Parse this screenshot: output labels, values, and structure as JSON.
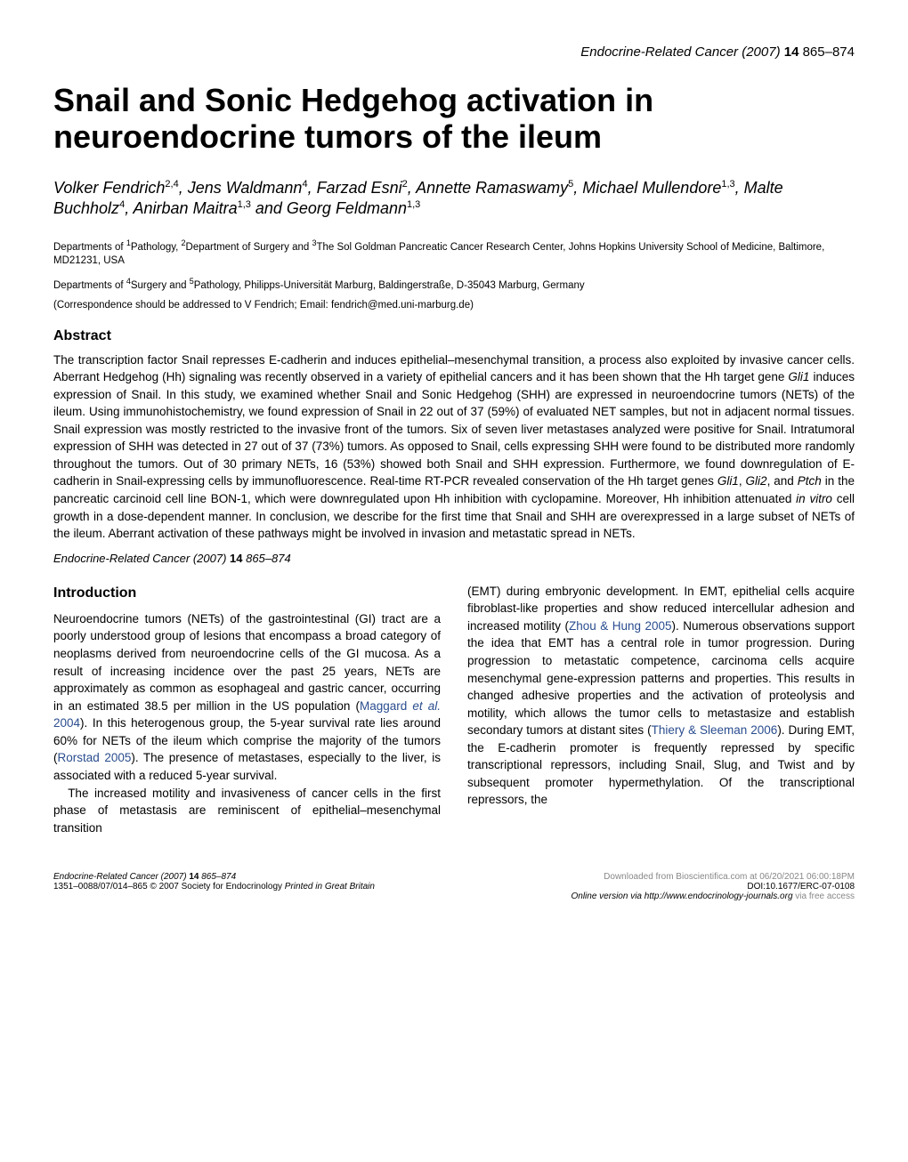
{
  "journal_header": {
    "journal_name": "Endocrine-Related Cancer",
    "year": "(2007)",
    "volume": "14",
    "pages": "865–874"
  },
  "title": "Snail and Sonic Hedgehog activation in neuroendocrine tumors of the ileum",
  "authors_html": "Volker Fendrich<sup>2,4</sup>, Jens Waldmann<sup>4</sup>, Farzad Esni<sup>2</sup>, Annette Ramaswamy<sup>5</sup>, Michael Mullendore<sup>1,3</sup>, Malte Buchholz<sup>4</sup>, Anirban Maitra<sup>1,3</sup> and Georg Feldmann<sup>1,3</sup>",
  "affiliations": {
    "line1_html": "Departments of <sup>1</sup>Pathology, <sup>2</sup>Department of Surgery and <sup>3</sup>The Sol Goldman Pancreatic Cancer Research Center, Johns Hopkins University School of Medicine, Baltimore, MD21231, USA",
    "line2_html": "Departments of <sup>4</sup>Surgery and <sup>5</sup>Pathology, Philipps-Universität Marburg, Baldingerstraße, D-35043 Marburg, Germany"
  },
  "correspondence": "(Correspondence should be addressed to V Fendrich; Email: fendrich@med.uni-marburg.de)",
  "abstract": {
    "heading": "Abstract",
    "body_html": "The transcription factor Snail represses E-cadherin and induces epithelial–mesenchymal transition, a process also exploited by invasive cancer cells. Aberrant Hedgehog (Hh) signaling was recently observed in a variety of epithelial cancers and it has been shown that the Hh target gene <span class='gene'>Gli1</span> induces expression of Snail. In this study, we examined whether Snail and Sonic Hedgehog (SHH) are expressed in neuroendocrine tumors (NETs) of the ileum. Using immunohistochemistry, we found expression of Snail in 22 out of 37 (59%) of evaluated NET samples, but not in adjacent normal tissues. Snail expression was mostly restricted to the invasive front of the tumors. Six of seven liver metastases analyzed were positive for Snail. Intratumoral expression of SHH was detected in 27 out of 37 (73%) tumors. As opposed to Snail, cells expressing SHH were found to be distributed more randomly throughout the tumors. Out of 30 primary NETs, 16 (53%) showed both Snail and SHH expression. Furthermore, we found downregulation of E-cadherin in Snail-expressing cells by immunofluorescence. Real-time RT-PCR revealed conservation of the Hh target genes <span class='gene'>Gli1</span>, <span class='gene'>Gli2</span>, and <span class='gene'>Ptch</span> in the pancreatic carcinoid cell line BON-1, which were downregulated upon Hh inhibition with cyclopamine. Moreover, Hh inhibition attenuated <span class='gene'>in vitro</span> cell growth in a dose-dependent manner. In conclusion, we describe for the first time that Snail and SHH are overexpressed in a large subset of NETs of the ileum. Aberrant activation of these pathways might be involved in invasion and metastatic spread in NETs.",
    "citation_html": "<span style='font-style:italic'>Endocrine-Related Cancer</span> (2007) <span style='font-weight:bold;font-style:normal'>14</span> 865–874"
  },
  "introduction": {
    "heading": "Introduction",
    "left_html": "Neuroendocrine tumors (NETs) of the gastrointestinal (GI) tract are a poorly understood group of lesions that encompass a broad category of neoplasms derived from neuroendocrine cells of the GI mucosa. As a result of increasing incidence over the past 25 years, NETs are approximately as common as esophageal and gastric cancer, occurring in an estimated 38.5 per million in the US population (<span class='ref-link'>Maggard <i>et al.</i> 2004</span>). In this heterogenous group, the 5-year survival rate lies around 60% for NETs of the ileum which comprise the majority of the tumors (<span class='ref-link'>Rorstad 2005</span>). The presence of metastases, especially to the liver, is associated with a reduced 5-year survival.",
    "left_p2_html": "The increased motility and invasiveness of cancer cells in the first phase of metastasis are reminiscent of epithelial–mesenchymal transition",
    "right_html": "(EMT) during embryonic development. In EMT, epithelial cells acquire fibroblast-like properties and show reduced intercellular adhesion and increased motility (<span class='ref-link'>Zhou &amp; Hung 2005</span>). Numerous observations support the idea that EMT has a central role in tumor progression. During progression to metastatic competence, carcinoma cells acquire mesenchymal gene-expression patterns and properties. This results in changed adhesive properties and the activation of proteolysis and motility, which allows the tumor cells to metastasize and establish secondary tumors at distant sites (<span class='ref-link'>Thiery &amp; Sleeman 2006</span>). During EMT, the E-cadherin promoter is frequently repressed by specific transcriptional repressors, including Snail, Slug, and Twist and by subsequent promoter hypermethylation. Of the transcriptional repressors, the"
  },
  "footer": {
    "left_line1_html": "<span style='font-style:italic'>Endocrine-Related Cancer</span> (2007) <span class='bold'>14</span> 865–874",
    "left_line2_html": "1351–0088/07/014–865 © 2007 Society for Endocrinology <span style='font-style:italic'>Printed in Great Britain</span>",
    "right_line1": "Downloaded from Bioscientifica.com at 06/20/2021 06:00:18PM",
    "right_line1b": "DOI:10.1677/ERC-07-0108",
    "right_line2_html": "Online version via http://www.endocrinology-journals.org",
    "right_line2b": "via free access"
  }
}
